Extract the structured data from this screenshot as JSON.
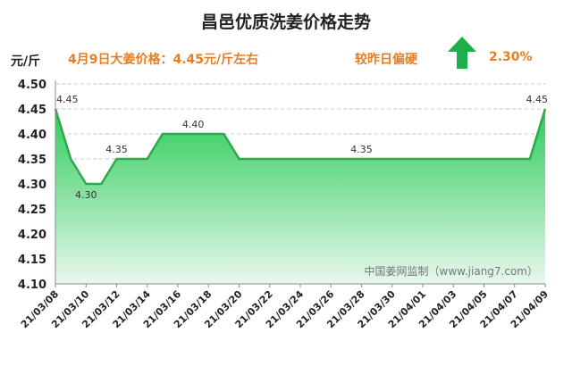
{
  "header": {
    "title": "昌邑优质洗姜价格走势",
    "unit": "元/斤",
    "price_note": "4月9日大姜价格：4.45元/斤左右",
    "compare_note": "较昨日偏硬",
    "change_pct": "2.30%",
    "arrow_icon": "up-arrow-icon",
    "arrow_color": "#1db04a"
  },
  "watermark": "中国姜网监制（www.jiang7.com）",
  "chart_data": {
    "type": "area",
    "title": "昌邑优质洗姜价格走势",
    "ylabel": "元/斤",
    "ylim": [
      4.1,
      4.5
    ],
    "yticks": [
      "4.10",
      "4.15",
      "4.20",
      "4.25",
      "4.30",
      "4.35",
      "4.40",
      "4.45",
      "4.50"
    ],
    "x": [
      "21/03/08",
      "21/03/09",
      "21/03/10",
      "21/03/11",
      "21/03/12",
      "21/03/13",
      "21/03/14",
      "21/03/15",
      "21/03/16",
      "21/03/17",
      "21/03/18",
      "21/03/19",
      "21/03/20",
      "21/03/21",
      "21/03/22",
      "21/03/23",
      "21/03/24",
      "21/03/25",
      "21/03/26",
      "21/03/27",
      "21/03/28",
      "21/03/29",
      "21/03/30",
      "21/03/31",
      "21/04/01",
      "21/04/02",
      "21/04/03",
      "21/04/04",
      "21/04/05",
      "21/04/06",
      "21/04/07",
      "21/04/08",
      "21/04/09"
    ],
    "values": [
      4.45,
      4.35,
      4.3,
      4.3,
      4.35,
      4.35,
      4.35,
      4.4,
      4.4,
      4.4,
      4.4,
      4.4,
      4.35,
      4.35,
      4.35,
      4.35,
      4.35,
      4.35,
      4.35,
      4.35,
      4.35,
      4.35,
      4.35,
      4.35,
      4.35,
      4.35,
      4.35,
      4.35,
      4.35,
      4.35,
      4.35,
      4.35,
      4.45
    ],
    "xtick_labels": [
      "21/03/08",
      "21/03/10",
      "21/03/12",
      "21/03/14",
      "21/03/16",
      "21/03/18",
      "21/03/20",
      "21/03/22",
      "21/03/24",
      "21/03/26",
      "21/03/28",
      "21/03/30",
      "21/04/01",
      "21/04/03",
      "21/04/05",
      "21/04/07",
      "21/04/09"
    ],
    "data_labels": [
      {
        "x": "21/03/08",
        "text": "4.45"
      },
      {
        "x": "21/03/10",
        "text": "4.30"
      },
      {
        "x": "21/03/12",
        "text": "4.35"
      },
      {
        "x": "21/03/17",
        "text": "4.40"
      },
      {
        "x": "21/03/28",
        "text": "4.35"
      },
      {
        "x": "21/04/09",
        "text": "4.45"
      }
    ],
    "line_color": "#2ea84d",
    "fill_top_color": "#2ecc5a",
    "fill_bottom_color": "#e8f8ec",
    "grid": true
  }
}
